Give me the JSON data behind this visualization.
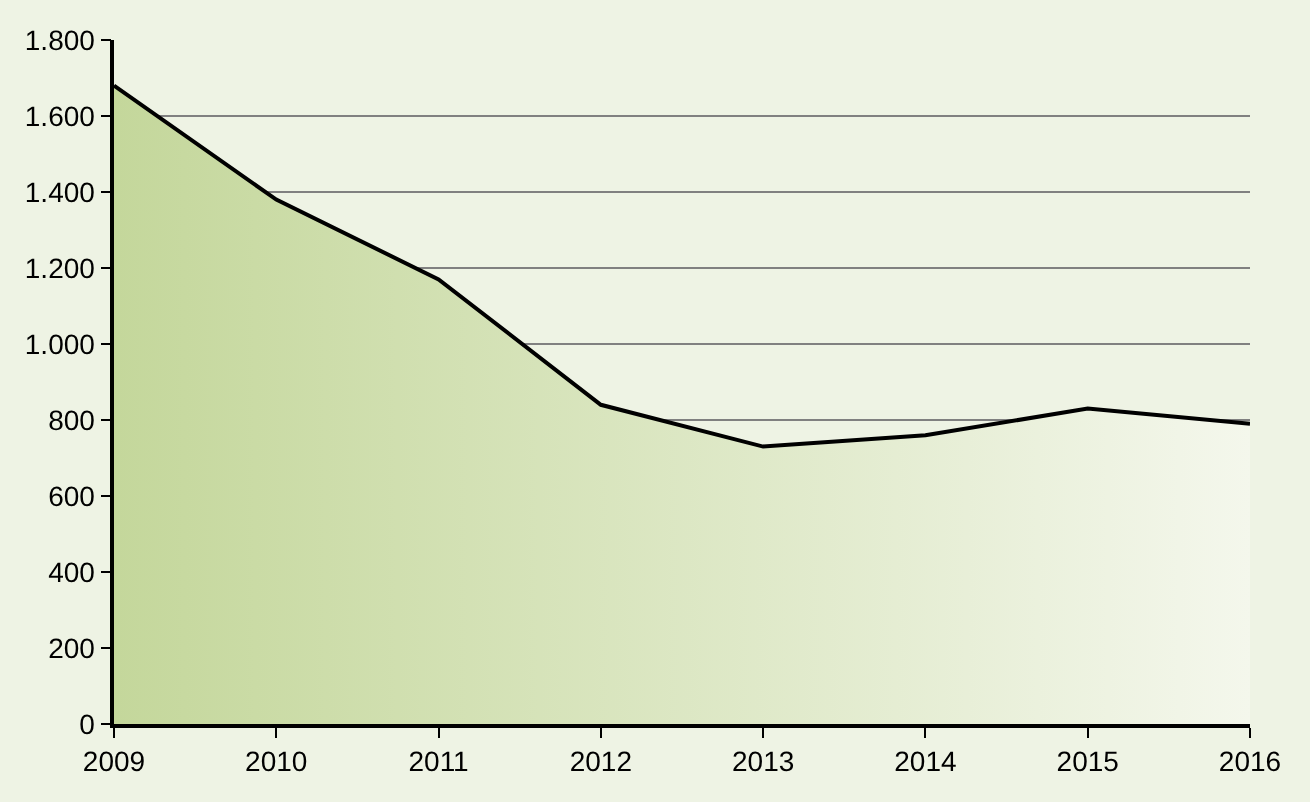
{
  "chart_data": {
    "type": "area",
    "categories": [
      "2009",
      "2010",
      "2011",
      "2012",
      "2013",
      "2014",
      "2015",
      "2016"
    ],
    "series": [
      {
        "color": "#c4d79b",
        "values": [
          1680,
          1380,
          1170,
          840,
          730,
          760,
          830,
          790
        ]
      }
    ],
    "ylim": [
      0,
      1800
    ],
    "yticks": [
      {
        "value": 0,
        "label": "0"
      },
      {
        "value": 200,
        "label": "200"
      },
      {
        "value": 400,
        "label": "400"
      },
      {
        "value": 600,
        "label": "600"
      },
      {
        "value": 800,
        "label": "800"
      },
      {
        "value": 1000,
        "label": "1.000"
      },
      {
        "value": 1200,
        "label": "1.200"
      },
      {
        "value": 1400,
        "label": "1.400"
      },
      {
        "value": 1600,
        "label": "1.600"
      },
      {
        "value": 1800,
        "label": "1.800"
      }
    ],
    "grid": "y"
  }
}
